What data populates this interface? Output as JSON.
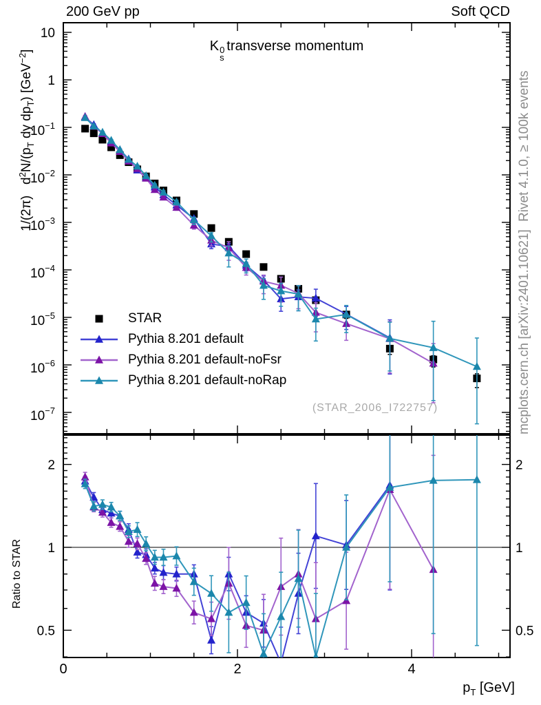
{
  "header": {
    "left": "200 GeV pp",
    "right": "Soft QCD"
  },
  "title": {
    "k": "K",
    "sup": "0",
    "sub": "s",
    "rest": "transverse momentum"
  },
  "axes": {
    "y_title": {
      "p1": "1/(2π)   d",
      "sup1": "2",
      "p2": "N/(p",
      "sub1": "T",
      "p3": " dy dp",
      "sub2": "T",
      "p4": ") [GeV",
      "sup2": "−2",
      "p5": "]"
    },
    "x_title": {
      "p": "p",
      "sub": "T",
      "rest": " [GeV]"
    },
    "ratio_title": "Ratio to STAR",
    "x_tick_labels": [
      "0",
      "2",
      "4"
    ],
    "x_tick_values": [
      0,
      2,
      4
    ],
    "x_minor_step": 0.5,
    "y_tick_exponents": [
      1,
      0,
      -1,
      -2,
      -3,
      -4,
      -5,
      -6,
      -7
    ],
    "ratio_tick_labels": [
      "2",
      "1",
      "0.5"
    ],
    "ratio_tick_values": [
      2,
      1,
      0.5
    ],
    "ratio_minor_ticks": [
      0.4,
      0.6,
      0.7,
      0.8,
      0.9,
      1.1,
      1.2,
      1.3,
      1.4,
      1.5,
      1.6,
      1.7,
      1.8,
      1.9,
      2.1,
      2.2,
      2.3,
      2.4,
      2.5
    ]
  },
  "legend": {
    "items": [
      {
        "label": "STAR",
        "marker": "square",
        "color": "#000000",
        "line": null
      },
      {
        "label": "Pythia 8.201 default",
        "marker": "triangle",
        "color": "#2323cb",
        "line": "#4343d6"
      },
      {
        "label": "Pythia 8.201 default-noFsr",
        "marker": "triangle",
        "color": "#7c14a6",
        "line": "#a263cd"
      },
      {
        "label": "Pythia 8.201 default-noRap",
        "marker": "triangle",
        "color": "#1b87ac",
        "line": "#2f96ba"
      }
    ]
  },
  "watermark": {
    "text": "(STAR_2006_I722757)"
  },
  "side_notes": {
    "top": "Rivet 4.1.0, ≥ 100k events",
    "bottom": "mcplots.cern.ch [arXiv:2401.10621]"
  },
  "chart_data": {
    "type": "line",
    "title": "K0s transverse momentum",
    "xlabel": "pT [GeV]",
    "ylabel": "1/(2π) d²N/(pT dy dpT) [GeV⁻²]",
    "ratio_ylabel": "Ratio to STAR",
    "xlim": [
      0,
      5.13
    ],
    "ylim": [
      3.5e-08,
      16
    ],
    "yscale": "log",
    "ratio_ylim": [
      0.39,
      2.56
    ],
    "ratio_yscale": "log",
    "grid": false,
    "legend_position": "inside-left-middle",
    "x": [
      0.25,
      0.35,
      0.45,
      0.55,
      0.65,
      0.75,
      0.85,
      0.95,
      1.05,
      1.15,
      1.3,
      1.5,
      1.7,
      1.9,
      2.1,
      2.3,
      2.5,
      2.7,
      2.9,
      3.25,
      3.75,
      4.25,
      4.75
    ],
    "series": [
      {
        "name": "STAR",
        "marker": "square",
        "color": "#000000",
        "line": null,
        "values": [
          0.094,
          0.075,
          0.055,
          0.038,
          0.026,
          0.0185,
          0.0131,
          0.0093,
          0.0066,
          0.0047,
          0.0029,
          0.0015,
          0.00076,
          0.00039,
          0.000215,
          0.000115,
          6.5e-05,
          4e-05,
          2.3e-05,
          1.15e-05,
          2.2e-06,
          1.3e-06,
          5.2e-07
        ],
        "err_factor": [
          1.02,
          1.02,
          1.02,
          1.02,
          1.02,
          1.02,
          1.02,
          1.02,
          1.02,
          1.02,
          1.02,
          1.02,
          1.02,
          1.03,
          1.03,
          1.04,
          1.05,
          1.06,
          1.08,
          1.1,
          1.15,
          1.2,
          1.25
        ],
        "ratio": null
      },
      {
        "name": "Pythia 8.201 default",
        "marker": "triangle",
        "color": "#2323cb",
        "line": "#4343d6",
        "values": [
          0.1636,
          0.114,
          0.0754,
          0.0505,
          0.0338,
          0.0215,
          0.0126,
          0.00874,
          0.00554,
          0.00381,
          0.00232,
          0.0012,
          0.00035,
          0.000312,
          0.000125,
          6.1e-05,
          2.45e-05,
          2.7e-05,
          2.53e-05,
          1.17e-05,
          3.7e-06,
          null,
          null
        ],
        "ratio": [
          1.74,
          1.52,
          1.37,
          1.33,
          1.3,
          1.16,
          0.96,
          0.94,
          0.84,
          0.81,
          0.8,
          0.8,
          0.46,
          0.8,
          0.58,
          0.53,
          0.38,
          0.68,
          1.1,
          1.02,
          1.68,
          null,
          null
        ],
        "err_factor": [
          1.04,
          1.04,
          1.04,
          1.04,
          1.04,
          1.05,
          1.05,
          1.05,
          1.05,
          1.06,
          1.06,
          1.08,
          1.12,
          1.15,
          1.15,
          1.22,
          1.35,
          1.4,
          1.55,
          1.45,
          2.4,
          null,
          null
        ]
      },
      {
        "name": "Pythia 8.201 default-noFsr",
        "marker": "triangle",
        "color": "#7c14a6",
        "line": "#a263cd",
        "values": [
          0.169,
          0.105,
          0.0737,
          0.0467,
          0.0309,
          0.0194,
          0.0135,
          0.00846,
          0.00488,
          0.00338,
          0.00206,
          0.00087,
          0.00042,
          0.00029,
          0.000112,
          5.75e-05,
          4.7e-05,
          3.2e-05,
          1.27e-05,
          7.4e-06,
          3.56e-06,
          1.08e-06,
          null
        ],
        "ratio": [
          1.8,
          1.4,
          1.34,
          1.23,
          1.19,
          1.05,
          1.03,
          0.91,
          0.74,
          0.72,
          0.71,
          0.58,
          0.55,
          0.74,
          0.52,
          0.5,
          0.72,
          0.8,
          0.55,
          0.64,
          1.62,
          0.83,
          null
        ],
        "err_factor": [
          1.04,
          1.04,
          1.04,
          1.04,
          1.04,
          1.05,
          1.05,
          1.05,
          1.06,
          1.06,
          1.07,
          1.1,
          1.15,
          1.35,
          1.2,
          1.35,
          1.5,
          1.45,
          1.6,
          1.5,
          2.3,
          2.6,
          null
        ]
      },
      {
        "name": "Pythia 8.201 default-noRap",
        "marker": "triangle",
        "color": "#1b87ac",
        "line": "#2f96ba",
        "values": [
          0.16,
          0.106,
          0.0787,
          0.0532,
          0.0338,
          0.0211,
          0.0152,
          0.00958,
          0.00607,
          0.00432,
          0.0027,
          0.00113,
          0.00052,
          0.000226,
          0.000135,
          4.7e-05,
          3.6e-05,
          3.1e-05,
          9.2e-06,
          1.15e-05,
          3.6e-06,
          2.3e-06,
          9.2e-07
        ],
        "ratio": [
          1.7,
          1.41,
          1.43,
          1.4,
          1.3,
          1.14,
          1.16,
          1.03,
          0.92,
          0.92,
          0.93,
          0.75,
          0.68,
          0.58,
          0.63,
          0.41,
          0.56,
          0.77,
          0.4,
          1.0,
          1.65,
          1.75,
          1.76
        ],
        "err_factor": [
          1.04,
          1.04,
          1.04,
          1.04,
          1.04,
          1.05,
          1.06,
          1.06,
          1.06,
          1.07,
          1.08,
          1.12,
          1.16,
          1.4,
          1.25,
          1.4,
          1.45,
          1.5,
          1.7,
          1.55,
          2.2,
          3.6,
          4.0
        ]
      }
    ],
    "ratio_reference": 1
  }
}
